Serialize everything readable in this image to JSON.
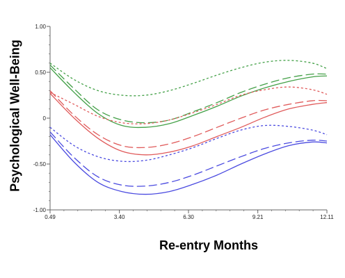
{
  "chart_data": {
    "type": "line",
    "xlabel": "Re-entry Months",
    "ylabel": "Psychological Well-Being",
    "xlim": [
      0.49,
      12.11
    ],
    "ylim": [
      -1.0,
      1.0
    ],
    "x_ticks": [
      "0.49",
      "3.40",
      "6.30",
      "9.21",
      "12.11"
    ],
    "y_ticks": [
      "1.00",
      "0.50",
      "0",
      "-0.50",
      "-1.00"
    ],
    "grid": false,
    "x": [
      0.49,
      1.5,
      2.5,
      3.5,
      4.5,
      5.5,
      6.5,
      7.5,
      8.5,
      9.5,
      10.5,
      11.5,
      12.11
    ],
    "series": [
      {
        "color": "#43a047",
        "style": "solid",
        "values": [
          0.55,
          0.28,
          0.05,
          -0.08,
          -0.1,
          -0.06,
          0.03,
          0.13,
          0.24,
          0.33,
          0.4,
          0.45,
          0.46
        ]
      },
      {
        "color": "#43a047",
        "style": "longdash",
        "values": [
          0.58,
          0.32,
          0.09,
          -0.02,
          -0.05,
          -0.02,
          0.07,
          0.17,
          0.28,
          0.37,
          0.44,
          0.48,
          0.48
        ]
      },
      {
        "color": "#43a047",
        "style": "dotted",
        "values": [
          0.6,
          0.42,
          0.3,
          0.25,
          0.25,
          0.3,
          0.38,
          0.47,
          0.55,
          0.61,
          0.63,
          0.6,
          0.54
        ]
      },
      {
        "color": "#e05a5a",
        "style": "solid",
        "values": [
          0.27,
          0.0,
          -0.22,
          -0.36,
          -0.4,
          -0.37,
          -0.3,
          -0.2,
          -0.1,
          0.01,
          0.1,
          0.15,
          0.17
        ]
      },
      {
        "color": "#e05a5a",
        "style": "longdash",
        "values": [
          0.3,
          0.03,
          -0.18,
          -0.3,
          -0.32,
          -0.28,
          -0.2,
          -0.1,
          0.0,
          0.09,
          0.15,
          0.19,
          0.19
        ]
      },
      {
        "color": "#e05a5a",
        "style": "dotted",
        "values": [
          0.28,
          0.15,
          0.02,
          -0.05,
          -0.06,
          -0.02,
          0.06,
          0.15,
          0.25,
          0.31,
          0.34,
          0.31,
          0.26
        ]
      },
      {
        "color": "#4a4ae0",
        "style": "solid",
        "values": [
          -0.18,
          -0.48,
          -0.7,
          -0.8,
          -0.83,
          -0.8,
          -0.72,
          -0.62,
          -0.5,
          -0.39,
          -0.3,
          -0.26,
          -0.27
        ]
      },
      {
        "color": "#4a4ae0",
        "style": "longdash",
        "values": [
          -0.15,
          -0.43,
          -0.64,
          -0.73,
          -0.74,
          -0.7,
          -0.62,
          -0.52,
          -0.42,
          -0.33,
          -0.27,
          -0.24,
          -0.25
        ]
      },
      {
        "color": "#4a4ae0",
        "style": "dotted",
        "values": [
          -0.1,
          -0.3,
          -0.42,
          -0.47,
          -0.46,
          -0.4,
          -0.32,
          -0.22,
          -0.13,
          -0.08,
          -0.09,
          -0.13,
          -0.18
        ]
      }
    ]
  }
}
